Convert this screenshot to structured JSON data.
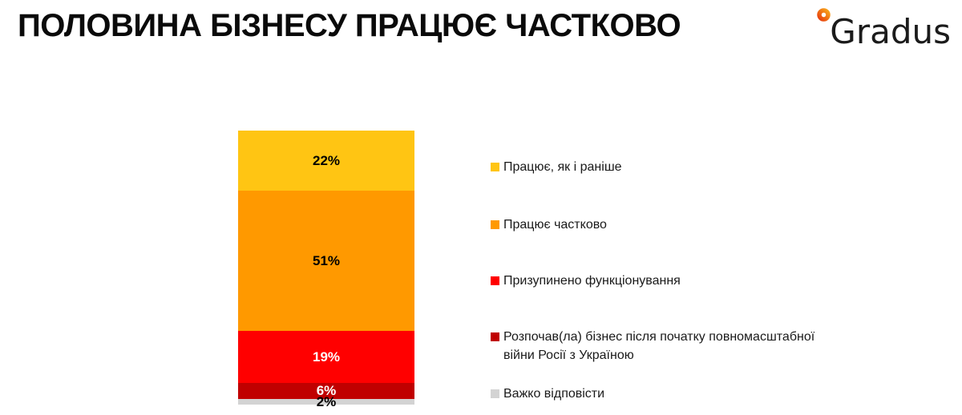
{
  "page": {
    "title": "ПОЛОВИНА БІЗНЕСУ ПРАЦЮЄ ЧАСТКОВО",
    "background_color": "#FFFFFF"
  },
  "logo": {
    "text": "Gradus",
    "dot_gradient_start": "#F7A21B",
    "dot_gradient_end": "#E8420E",
    "text_color": "#1B1B1B"
  },
  "chart_data": {
    "type": "bar",
    "variant": "stacked-vertical-single-column",
    "title": "ПОЛОВИНА БІЗНЕСУ ПРАЦЮЄ ЧАСТКОВО",
    "unit": "%",
    "grid": false,
    "axes_visible": false,
    "legend_position": "right",
    "categories": [
      "Працює, як і раніше",
      "Працює частково",
      "Призупинено функціонування",
      "Розпочав(ла) бізнес після початку повномасштабної війни Росії з Україною",
      "Важко відповісти"
    ],
    "values": [
      22,
      51,
      19,
      6,
      2
    ],
    "segments": [
      {
        "label": "Працює, як і раніше",
        "value": 22,
        "value_label": "22%",
        "color": "#FFC513",
        "value_text_color": "#000000"
      },
      {
        "label": "Працює частково",
        "value": 51,
        "value_label": "51%",
        "color": "#FF9900",
        "value_text_color": "#000000"
      },
      {
        "label": "Призупинено функціонування",
        "value": 19,
        "value_label": "19%",
        "color": "#FF0000",
        "value_text_color": "#FFFFFF"
      },
      {
        "label": "Розпочав(ла) бізнес після початку повномасштабної війни Росії з Україною",
        "value": 6,
        "value_label": "6%",
        "color": "#C00000",
        "value_text_color": "#FFFFFF"
      },
      {
        "label": "Важко відповісти",
        "value": 2,
        "value_label": "2%",
        "color": "#D3D3D3",
        "value_text_color": "#000000"
      }
    ]
  }
}
